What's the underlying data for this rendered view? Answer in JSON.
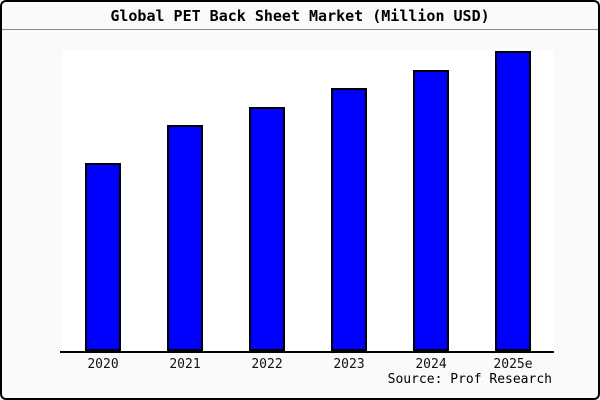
{
  "window": {
    "background_color": "#fafafa",
    "border_color": "#000000",
    "plot_background": "#ffffff"
  },
  "header": {
    "title": "Global PET Back Sheet Market (Million USD)"
  },
  "footer": {
    "source": "Source: Prof Research"
  },
  "chart_data": {
    "type": "bar",
    "title": "Global PET Back Sheet Market (Million USD)",
    "categories": [
      "2020",
      "2021",
      "2022",
      "2023",
      "2024",
      "2025e"
    ],
    "values": [
      188,
      226,
      244,
      263,
      281,
      300
    ],
    "value_note": "no y-axis shown; values are relative bar heights in pixels",
    "xlabel": "",
    "ylabel": "",
    "ylim": [
      0,
      300
    ],
    "grid": false,
    "legend": false,
    "bar_color": "#0000ff",
    "bar_border_color": "#000000",
    "axis_color": "#000000",
    "source": "Source: Prof Research"
  }
}
